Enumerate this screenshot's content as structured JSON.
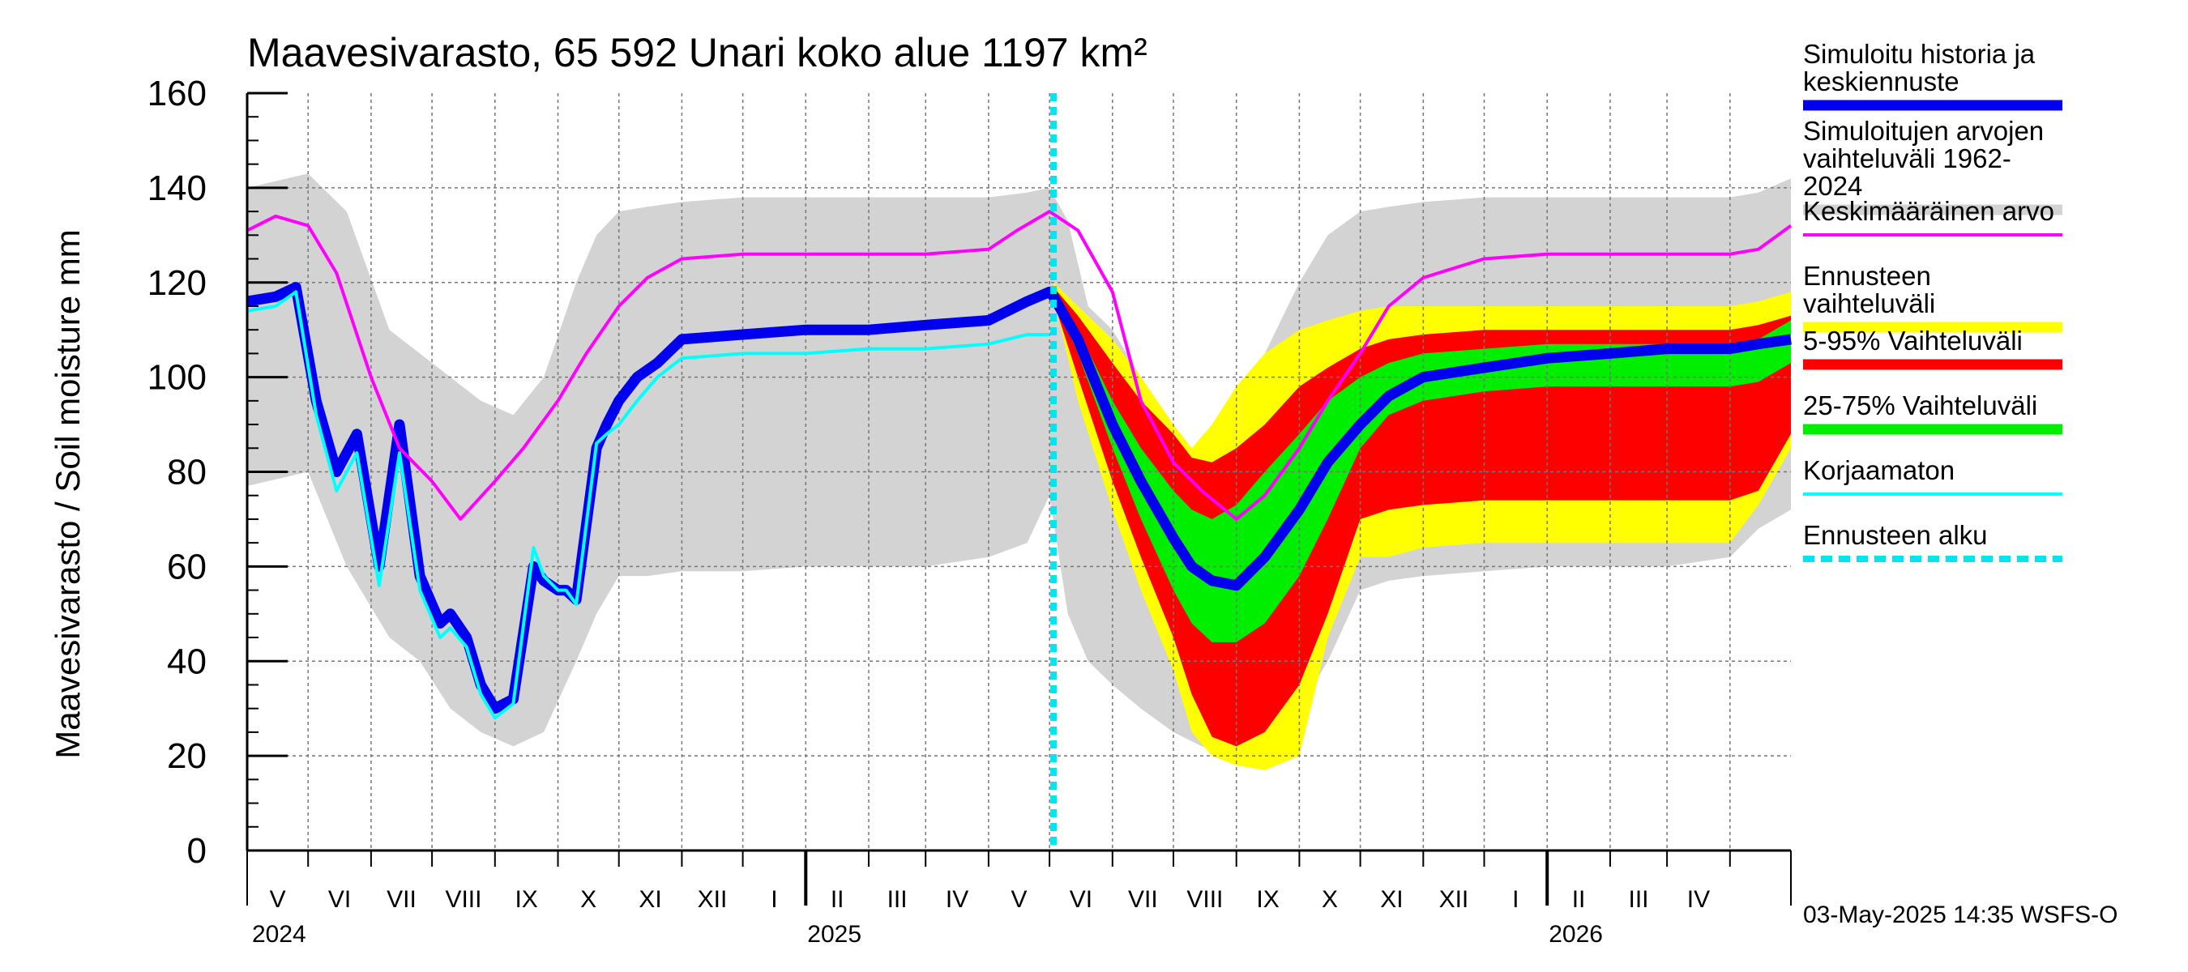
{
  "chart_data": {
    "type": "area",
    "title": "Maavesivarasto, 65 592 Unari koko alue 1197 km²",
    "ylabel": "Maavesivarasto / Soil moisture   mm",
    "ylim": [
      0,
      160
    ],
    "yticks": [
      "0",
      "20",
      "40",
      "60",
      "80",
      "100",
      "120",
      "140",
      "160"
    ],
    "ytick_values": [
      0,
      20,
      40,
      60,
      80,
      100,
      120,
      140,
      160
    ],
    "xlim": [
      "2024-04-01",
      "2026-05-01"
    ],
    "month_labels": [
      "V",
      "VI",
      "VII",
      "VIII",
      "IX",
      "X",
      "XI",
      "XII",
      "I",
      "II",
      "III",
      "IV",
      "V",
      "VI",
      "VII",
      "VIII",
      "IX",
      "X",
      "XI",
      "XII",
      "I",
      "II",
      "III",
      "IV"
    ],
    "year_labels": [
      "2024",
      "2025",
      "2026"
    ],
    "forecast_start": "2025-05-03",
    "grid": true,
    "legend_position": "right",
    "series": [
      {
        "name": "Simuloitujen arvojen vaihteluväli 1962-2024",
        "kind": "band",
        "color": "#d3d3d3",
        "x": [
          "2024-04-01",
          "2024-05-01",
          "2024-05-20",
          "2024-06-10",
          "2024-06-25",
          "2024-07-10",
          "2024-07-25",
          "2024-08-10",
          "2024-08-25",
          "2024-09-10",
          "2024-09-20",
          "2024-10-01",
          "2024-10-15",
          "2024-11-01",
          "2024-12-01",
          "2025-01-01",
          "2025-02-01",
          "2025-03-01",
          "2025-04-01",
          "2025-04-20",
          "2025-05-01",
          "2025-05-10",
          "2025-05-20",
          "2025-06-01",
          "2025-06-15",
          "2025-07-01",
          "2025-07-15",
          "2025-08-01",
          "2025-08-15",
          "2025-09-01",
          "2025-09-15",
          "2025-10-01",
          "2025-10-15",
          "2025-11-01",
          "2025-12-01",
          "2026-01-01",
          "2026-02-01",
          "2026-03-01",
          "2026-04-01",
          "2026-04-15",
          "2026-05-01"
        ],
        "low": [
          77,
          80,
          60,
          45,
          40,
          30,
          25,
          22,
          25,
          40,
          50,
          58,
          58,
          59,
          59,
          60,
          60,
          60,
          62,
          65,
          75,
          50,
          40,
          35,
          30,
          25,
          22,
          20,
          22,
          30,
          40,
          55,
          57,
          58,
          59,
          60,
          60,
          60,
          62,
          68,
          72
        ],
        "high": [
          140,
          143,
          135,
          110,
          105,
          100,
          95,
          92,
          100,
          120,
          130,
          135,
          136,
          137,
          138,
          138,
          138,
          138,
          138,
          139,
          140,
          133,
          115,
          110,
          100,
          90,
          80,
          90,
          105,
          120,
          130,
          135,
          136,
          137,
          138,
          138,
          138,
          138,
          138,
          139,
          142
        ]
      },
      {
        "name": "Ennusteen vaihteluväli",
        "kind": "band",
        "color": "#ffff00",
        "x": [
          "2025-05-03",
          "2025-05-15",
          "2025-06-01",
          "2025-06-15",
          "2025-07-01",
          "2025-07-10",
          "2025-07-20",
          "2025-08-01",
          "2025-08-15",
          "2025-09-01",
          "2025-09-15",
          "2025-10-01",
          "2025-10-15",
          "2025-11-01",
          "2025-12-01",
          "2026-01-01",
          "2026-02-01",
          "2026-03-01",
          "2026-04-01",
          "2026-04-15",
          "2026-05-01"
        ],
        "low": [
          117,
          95,
          72,
          55,
          38,
          25,
          20,
          18,
          17,
          20,
          45,
          62,
          62,
          64,
          65,
          65,
          65,
          65,
          65,
          73,
          85
        ],
        "high": [
          120,
          115,
          108,
          100,
          90,
          85,
          90,
          98,
          105,
          110,
          112,
          114,
          115,
          115,
          115,
          115,
          115,
          115,
          115,
          116,
          118
        ]
      },
      {
        "name": "5-95% Vaihteluväli",
        "kind": "band",
        "color": "#ff0000",
        "x": [
          "2025-05-03",
          "2025-05-15",
          "2025-06-01",
          "2025-06-15",
          "2025-07-01",
          "2025-07-10",
          "2025-07-20",
          "2025-08-01",
          "2025-08-15",
          "2025-09-01",
          "2025-09-15",
          "2025-10-01",
          "2025-10-15",
          "2025-11-01",
          "2025-12-01",
          "2026-01-01",
          "2026-02-01",
          "2026-03-01",
          "2026-04-01",
          "2026-04-15",
          "2026-05-01"
        ],
        "low": [
          116,
          100,
          78,
          62,
          45,
          33,
          24,
          22,
          25,
          35,
          50,
          70,
          72,
          73,
          74,
          74,
          74,
          74,
          74,
          76,
          88
        ],
        "high": [
          119,
          113,
          103,
          95,
          88,
          83,
          82,
          85,
          90,
          98,
          102,
          106,
          108,
          109,
          110,
          110,
          110,
          110,
          110,
          111,
          113
        ]
      },
      {
        "name": "25-75% Vaihteluväli",
        "kind": "band",
        "color": "#00ee00",
        "x": [
          "2025-05-03",
          "2025-05-15",
          "2025-06-01",
          "2025-06-15",
          "2025-07-01",
          "2025-07-10",
          "2025-07-20",
          "2025-08-01",
          "2025-08-15",
          "2025-09-01",
          "2025-09-15",
          "2025-10-01",
          "2025-10-15",
          "2025-11-01",
          "2025-12-01",
          "2026-01-01",
          "2026-02-01",
          "2026-03-01",
          "2026-04-01",
          "2026-04-15",
          "2026-05-01"
        ],
        "low": [
          117,
          105,
          85,
          70,
          55,
          48,
          44,
          44,
          48,
          58,
          70,
          85,
          92,
          95,
          97,
          98,
          98,
          98,
          98,
          99,
          103
        ],
        "high": [
          118,
          110,
          95,
          85,
          76,
          72,
          70,
          73,
          80,
          88,
          95,
          100,
          103,
          105,
          106,
          107,
          107,
          107,
          107,
          108,
          112
        ]
      },
      {
        "name": "Simuloitu historia ja keskiennuste",
        "kind": "line",
        "color": "#0000ee",
        "x": [
          "2024-04-01",
          "2024-04-15",
          "2024-04-25",
          "2024-05-05",
          "2024-05-15",
          "2024-05-25",
          "2024-06-05",
          "2024-06-15",
          "2024-06-25",
          "2024-07-05",
          "2024-07-10",
          "2024-07-18",
          "2024-07-25",
          "2024-08-01",
          "2024-08-10",
          "2024-08-20",
          "2024-08-25",
          "2024-09-01",
          "2024-09-05",
          "2024-09-10",
          "2024-09-20",
          "2024-09-25",
          "2024-10-01",
          "2024-10-10",
          "2024-10-20",
          "2024-11-01",
          "2024-12-01",
          "2025-01-01",
          "2025-02-01",
          "2025-03-01",
          "2025-04-01",
          "2025-04-20",
          "2025-05-01",
          "2025-05-03",
          "2025-05-15",
          "2025-06-01",
          "2025-06-15",
          "2025-07-01",
          "2025-07-10",
          "2025-07-20",
          "2025-08-01",
          "2025-08-15",
          "2025-09-01",
          "2025-09-15",
          "2025-10-01",
          "2025-10-15",
          "2025-11-01",
          "2025-12-01",
          "2026-01-01",
          "2026-02-01",
          "2026-03-01",
          "2026-04-01",
          "2026-04-15",
          "2026-05-01"
        ],
        "y": [
          116,
          117,
          119,
          95,
          80,
          88,
          60,
          90,
          58,
          48,
          50,
          45,
          35,
          30,
          32,
          60,
          57,
          55,
          55,
          53,
          85,
          90,
          95,
          100,
          103,
          108,
          109,
          110,
          110,
          111,
          112,
          116,
          118,
          117,
          108,
          90,
          78,
          66,
          60,
          57,
          56,
          62,
          72,
          82,
          90,
          96,
          100,
          102,
          104,
          105,
          106,
          106,
          107,
          108
        ]
      },
      {
        "name": "Keskimääräinen arvo",
        "kind": "line",
        "color": "#ff00ff",
        "x": [
          "2024-04-01",
          "2024-04-15",
          "2024-05-01",
          "2024-05-15",
          "2024-06-01",
          "2024-06-15",
          "2024-07-01",
          "2024-07-15",
          "2024-08-01",
          "2024-08-15",
          "2024-09-01",
          "2024-09-15",
          "2024-10-01",
          "2024-10-15",
          "2024-11-01",
          "2024-12-01",
          "2025-01-01",
          "2025-02-01",
          "2025-03-01",
          "2025-04-01",
          "2025-04-15",
          "2025-05-01",
          "2025-05-15",
          "2025-06-01",
          "2025-06-15",
          "2025-07-01",
          "2025-07-15",
          "2025-08-01",
          "2025-08-15",
          "2025-09-01",
          "2025-09-15",
          "2025-10-01",
          "2025-10-15",
          "2025-11-01",
          "2025-12-01",
          "2026-01-01",
          "2026-02-01",
          "2026-03-01",
          "2026-04-01",
          "2026-04-15",
          "2026-05-01"
        ],
        "y": [
          131,
          134,
          132,
          122,
          100,
          85,
          78,
          70,
          78,
          85,
          95,
          105,
          115,
          121,
          125,
          126,
          126,
          126,
          126,
          127,
          131,
          135,
          131,
          118,
          95,
          82,
          76,
          70,
          75,
          85,
          95,
          105,
          115,
          121,
          125,
          126,
          126,
          126,
          126,
          127,
          132
        ]
      },
      {
        "name": "Korjaamaton",
        "kind": "line",
        "color": "#00ffff",
        "x": [
          "2024-04-01",
          "2024-04-15",
          "2024-04-25",
          "2024-05-05",
          "2024-05-15",
          "2024-05-25",
          "2024-06-05",
          "2024-06-15",
          "2024-06-25",
          "2024-07-05",
          "2024-07-10",
          "2024-07-18",
          "2024-07-25",
          "2024-08-01",
          "2024-08-10",
          "2024-08-20",
          "2024-08-25",
          "2024-09-01",
          "2024-09-05",
          "2024-09-10",
          "2024-09-20",
          "2024-09-25",
          "2024-10-01",
          "2024-10-10",
          "2024-10-20",
          "2024-11-01",
          "2024-12-01",
          "2025-01-01",
          "2025-02-01",
          "2025-03-01",
          "2025-04-01",
          "2025-04-20",
          "2025-05-01"
        ],
        "y": [
          114,
          115,
          118,
          92,
          76,
          84,
          56,
          84,
          55,
          45,
          47,
          43,
          33,
          28,
          31,
          64,
          58,
          55,
          55,
          52,
          86,
          88,
          90,
          95,
          100,
          104,
          105,
          105,
          106,
          106,
          107,
          109,
          109
        ]
      },
      {
        "name": "Ennusteen alku",
        "kind": "vline",
        "color": "#00e5ee",
        "x": "2025-05-03"
      }
    ]
  },
  "legend": [
    {
      "label": "Simuloitu historia ja\nkeskiennuste",
      "color": "#0000ee",
      "style": "thick"
    },
    {
      "label": "Simuloitujen arvojen\nvaihteluväli 1962-2024",
      "color": "#d3d3d3",
      "style": "thick"
    },
    {
      "label": "Keskimääräinen arvo",
      "color": "#ff00ff",
      "style": "thin"
    },
    {
      "label": "Ennusteen vaihteluväli",
      "color": "#ffff00",
      "style": "thick"
    },
    {
      "label": "5-95% Vaihteluväli",
      "color": "#ff0000",
      "style": "thick"
    },
    {
      "label": "25-75% Vaihteluväli",
      "color": "#00ee00",
      "style": "thick"
    },
    {
      "label": "Korjaamaton",
      "color": "#00ffff",
      "style": "thin"
    },
    {
      "label": "Ennusteen alku",
      "color": "#00e5ee",
      "style": "dashed"
    }
  ],
  "footer": "03-May-2025 14:35 WSFS-O"
}
